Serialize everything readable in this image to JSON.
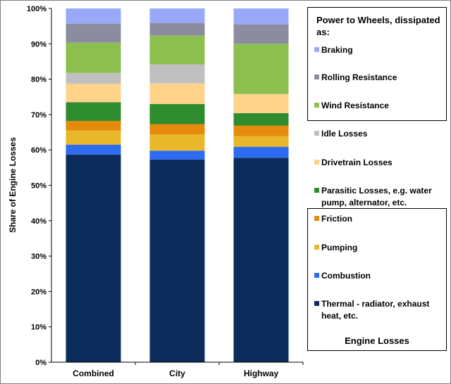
{
  "chart_data": {
    "type": "bar",
    "stacked": true,
    "ylabel": "Share of Engine Losses",
    "xlabel": "",
    "ylim": [
      0,
      100
    ],
    "yticks": [
      "0%",
      "10%",
      "20%",
      "30%",
      "40%",
      "50%",
      "60%",
      "70%",
      "80%",
      "90%",
      "100%"
    ],
    "categories": [
      "Combined",
      "City",
      "Highway"
    ],
    "series": [
      {
        "name": "Thermal - radiator, exhaust heat, etc.",
        "color": "#0c2d5c",
        "values": [
          58.7,
          57.3,
          57.8
        ]
      },
      {
        "name": "Combustion",
        "color": "#2d6cf0",
        "values": [
          2.8,
          2.5,
          3.1
        ]
      },
      {
        "name": "Pumping",
        "color": "#e8b82a",
        "values": [
          4.0,
          4.6,
          3.0
        ]
      },
      {
        "name": "Friction",
        "color": "#e68a0c",
        "values": [
          2.7,
          2.9,
          3.0
        ]
      },
      {
        "name": "Parasitic Losses,  e.g. water pump, alternator, etc.",
        "color": "#2e8b2e",
        "values": [
          5.3,
          5.7,
          3.5
        ]
      },
      {
        "name": "Drivetrain Losses",
        "color": "#ffd38a",
        "values": [
          5.2,
          5.8,
          5.4
        ]
      },
      {
        "name": "Idle Losses",
        "color": "#c0c0c0",
        "values": [
          3.1,
          5.4,
          0.0
        ]
      },
      {
        "name": "Wind Resistance",
        "color": "#8dbf4e",
        "values": [
          8.5,
          8.1,
          14.2
        ]
      },
      {
        "name": "Rolling Resistance",
        "color": "#8c8ca0",
        "values": [
          5.4,
          3.6,
          5.5
        ]
      },
      {
        "name": "Braking",
        "color": "#99a8f7",
        "values": [
          4.3,
          4.1,
          4.5
        ]
      }
    ],
    "legend_groups": {
      "top_title": "Power to Wheels, dissipated as:",
      "top_items": [
        "Braking",
        "Rolling Resistance",
        "Wind Resistance"
      ],
      "middle_items": [
        "Idle Losses",
        "Drivetrain Losses",
        "Parasitic Losses,  e.g. water pump, alternator, etc."
      ],
      "bottom_items": [
        "Friction",
        "Pumping",
        "Combustion",
        "Thermal - radiator, exhaust heat, etc."
      ],
      "bottom_title": "Engine Losses"
    },
    "grid": false,
    "legend_position": "right"
  }
}
